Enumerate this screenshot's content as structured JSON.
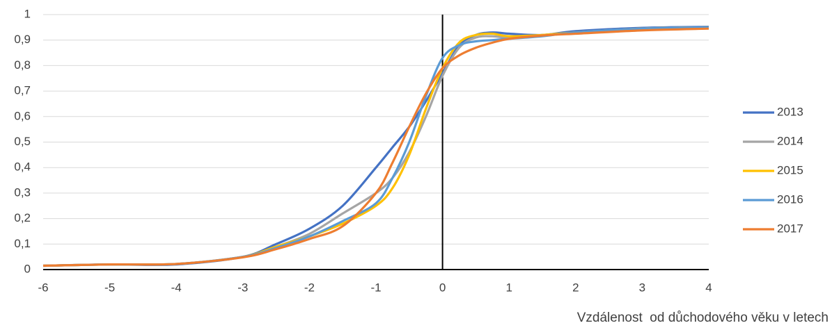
{
  "chart_data": {
    "type": "line",
    "x_label": "Vzdálenost  od důchodového věku v letech",
    "x": [
      -6,
      -5,
      -4,
      -3,
      -2.5,
      -2,
      -1.5,
      -1,
      -0.75,
      -0.5,
      -0.25,
      0,
      0.25,
      0.5,
      0.75,
      1,
      1.5,
      2,
      3,
      4
    ],
    "series": [
      {
        "name": "2013",
        "color": "#4472c4",
        "values": [
          0.015,
          0.02,
          0.02,
          0.05,
          0.1,
          0.16,
          0.25,
          0.4,
          0.48,
          0.56,
          0.66,
          0.77,
          0.88,
          0.92,
          0.93,
          0.925,
          0.92,
          0.935,
          0.948,
          0.952
        ]
      },
      {
        "name": "2014",
        "color": "#a5a5a5",
        "values": [
          0.015,
          0.02,
          0.022,
          0.05,
          0.09,
          0.14,
          0.22,
          0.3,
          0.36,
          0.46,
          0.6,
          0.76,
          0.87,
          0.91,
          0.915,
          0.91,
          0.92,
          0.93,
          0.945,
          0.95
        ]
      },
      {
        "name": "2015",
        "color": "#ffc000",
        "values": [
          0.015,
          0.02,
          0.022,
          0.05,
          0.09,
          0.13,
          0.18,
          0.25,
          0.32,
          0.45,
          0.63,
          0.79,
          0.89,
          0.92,
          0.925,
          0.915,
          0.92,
          0.93,
          0.945,
          0.95
        ]
      },
      {
        "name": "2016",
        "color": "#5b9bd5",
        "values": [
          0.015,
          0.02,
          0.022,
          0.05,
          0.085,
          0.13,
          0.19,
          0.26,
          0.36,
          0.5,
          0.68,
          0.83,
          0.88,
          0.895,
          0.9,
          0.905,
          0.915,
          0.93,
          0.945,
          0.95
        ]
      },
      {
        "name": "2017",
        "color": "#ed7d31",
        "values": [
          0.015,
          0.02,
          0.022,
          0.048,
          0.08,
          0.12,
          0.17,
          0.3,
          0.42,
          0.56,
          0.69,
          0.79,
          0.84,
          0.87,
          0.89,
          0.905,
          0.918,
          0.925,
          0.938,
          0.945
        ]
      }
    ],
    "xlim": [
      -6,
      4
    ],
    "xticks": [
      -6,
      -5,
      -4,
      -3,
      -2,
      -1,
      0,
      1,
      2,
      3,
      4
    ],
    "ylim": [
      0,
      1
    ],
    "yticks": [
      0,
      {
        "value": 0.1,
        "label": "0,1"
      },
      {
        "value": 0.2,
        "label": "0,2"
      },
      {
        "value": 0.3,
        "label": "0,3"
      },
      {
        "value": 0.4,
        "label": "0,4"
      },
      {
        "value": 0.5,
        "label": "0,5"
      },
      {
        "value": 0.6,
        "label": "0,6"
      },
      {
        "value": 0.7,
        "label": "0,7"
      },
      {
        "value": 0.8,
        "label": "0,8"
      },
      {
        "value": 0.9,
        "label": "0,9"
      },
      1
    ],
    "grid": true,
    "legend": "right"
  }
}
